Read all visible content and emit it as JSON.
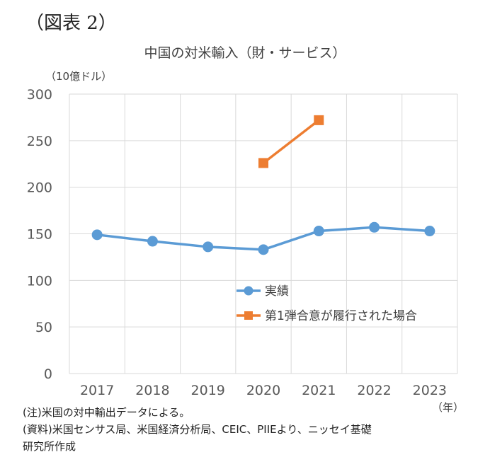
{
  "figure_label": "（図表 2）",
  "chart_data": {
    "type": "line",
    "title": "中国の対米輸入（財・サービス）",
    "ylabel": "（10億ドル）",
    "xlabel": "（年）",
    "categories": [
      "2017",
      "2018",
      "2019",
      "2020",
      "2021",
      "2022",
      "2023"
    ],
    "ylim": [
      0,
      300
    ],
    "yticks": [
      0,
      50,
      100,
      150,
      200,
      250,
      300
    ],
    "grid": true,
    "legend_position": "center-right",
    "series": [
      {
        "name": "実績",
        "color": "#5B9BD5",
        "marker": "circle",
        "values": [
          149,
          142,
          136,
          133,
          153,
          157,
          153
        ]
      },
      {
        "name": "第1弾合意が履行された場合",
        "color": "#ED7D31",
        "marker": "square",
        "values": [
          null,
          null,
          null,
          226,
          272,
          null,
          null
        ]
      }
    ]
  },
  "notes": [
    "(注)米国の対中輸出データによる。",
    "(資料)米国センサス局、米国経済分析局、CEIC、PIIEより、ニッセイ基礎",
    "研究所作成"
  ]
}
